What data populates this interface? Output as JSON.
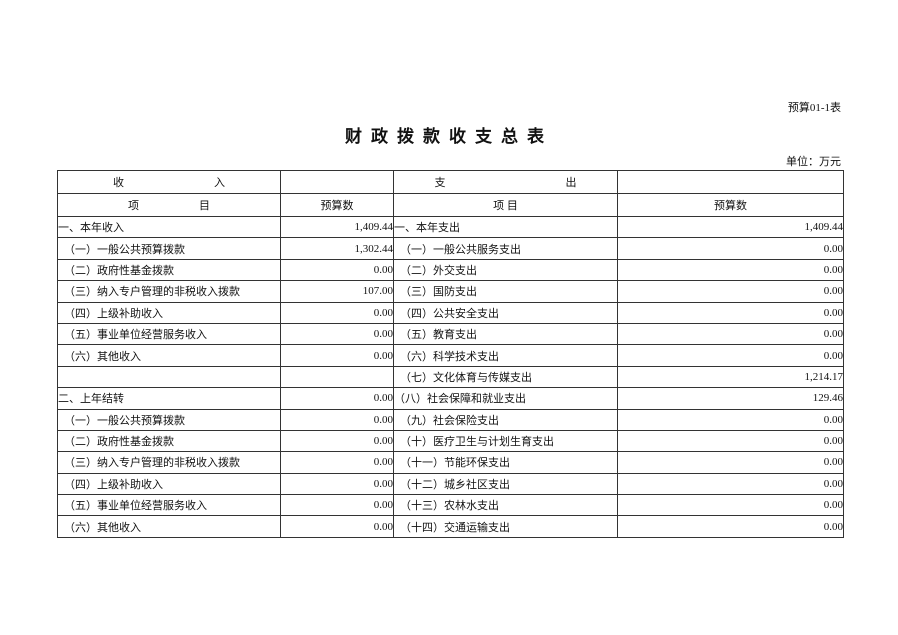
{
  "header": {
    "form_no": "预算01-1表",
    "title": "财政拨款收支总表",
    "unit": "单位：万元"
  },
  "table": {
    "income_header": [
      "收",
      "入"
    ],
    "expense_header": [
      "支",
      "出"
    ],
    "item_header": [
      "项",
      "目"
    ],
    "expense_item_header": "项 目",
    "budget_header": "预算数",
    "rows": [
      {
        "income": "一、本年收入",
        "income_amount": "1,409.44",
        "expense": "一、本年支出",
        "expense_amount": "1,409.44",
        "top": true
      },
      {
        "income": "（一）一般公共预算拨款",
        "income_amount": "1,302.44",
        "expense": "（一）一般公共服务支出",
        "expense_amount": "0.00"
      },
      {
        "income": "（二）政府性基金拨款",
        "income_amount": "0.00",
        "expense": "（二）外交支出",
        "expense_amount": "0.00"
      },
      {
        "income": "（三）纳入专户管理的非税收入拨款",
        "income_amount": "107.00",
        "expense": "（三）国防支出",
        "expense_amount": "0.00"
      },
      {
        "income": "（四）上级补助收入",
        "income_amount": "0.00",
        "expense": "（四）公共安全支出",
        "expense_amount": "0.00"
      },
      {
        "income": "（五）事业单位经营服务收入",
        "income_amount": "0.00",
        "expense": "（五）教育支出",
        "expense_amount": "0.00"
      },
      {
        "income": "（六）其他收入",
        "income_amount": "0.00",
        "expense": "（六）科学技术支出",
        "expense_amount": "0.00"
      },
      {
        "income": "",
        "income_amount": "",
        "expense": "（七）文化体育与传媒支出",
        "expense_amount": "1,214.17"
      },
      {
        "income": "二、上年结转",
        "income_amount": "0.00",
        "expense": "（八）社会保障和就业支出",
        "expense_amount": "129.46",
        "top": true
      },
      {
        "income": "（一）一般公共预算拨款",
        "income_amount": "0.00",
        "expense": "（九）社会保险支出",
        "expense_amount": "0.00"
      },
      {
        "income": "（二）政府性基金拨款",
        "income_amount": "0.00",
        "expense": "（十）医疗卫生与计划生育支出",
        "expense_amount": "0.00"
      },
      {
        "income": "（三）纳入专户管理的非税收入拨款",
        "income_amount": "0.00",
        "expense": "（十一）节能环保支出",
        "expense_amount": "0.00"
      },
      {
        "income": "（四）上级补助收入",
        "income_amount": "0.00",
        "expense": "（十二）城乡社区支出",
        "expense_amount": "0.00"
      },
      {
        "income": "（五）事业单位经营服务收入",
        "income_amount": "0.00",
        "expense": "（十三）农林水支出",
        "expense_amount": "0.00"
      },
      {
        "income": "（六）其他收入",
        "income_amount": "0.00",
        "expense": "（十四）交通运输支出",
        "expense_amount": "0.00"
      }
    ]
  }
}
